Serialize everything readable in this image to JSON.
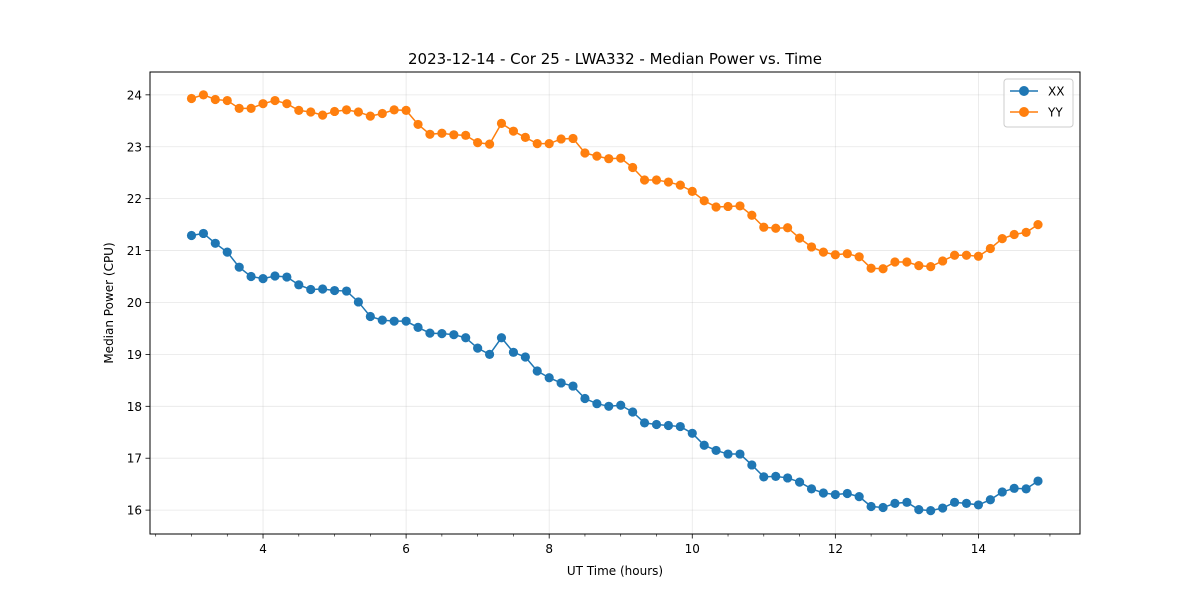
{
  "chart_data": {
    "type": "line",
    "title": "2023-12-14 - Cor 25 - LWA332 - Median Power vs. Time",
    "xlabel": "UT Time (hours)",
    "ylabel": "Median Power (CPU)",
    "xlim": [
      2.42,
      15.42
    ],
    "ylim": [
      15.54,
      24.44
    ],
    "xticks": [
      4,
      6,
      8,
      10,
      12,
      14
    ],
    "xtick_labels": [
      "4",
      "6",
      "8",
      "10",
      "12",
      "14"
    ],
    "yticks": [
      16,
      17,
      18,
      19,
      20,
      21,
      22,
      23,
      24
    ],
    "ytick_labels": [
      "16",
      "17",
      "18",
      "19",
      "20",
      "21",
      "22",
      "23",
      "24"
    ],
    "grid": true,
    "legend_position": "top-right",
    "x": [
      3.0,
      3.167,
      3.333,
      3.5,
      3.667,
      3.833,
      4.0,
      4.167,
      4.333,
      4.5,
      4.667,
      4.833,
      5.0,
      5.167,
      5.333,
      5.5,
      5.667,
      5.833,
      6.0,
      6.167,
      6.333,
      6.5,
      6.667,
      6.833,
      7.0,
      7.167,
      7.333,
      7.5,
      7.667,
      7.833,
      8.0,
      8.167,
      8.333,
      8.5,
      8.667,
      8.833,
      9.0,
      9.167,
      9.333,
      9.5,
      9.667,
      9.833,
      10.0,
      10.167,
      10.333,
      10.5,
      10.667,
      10.833,
      11.0,
      11.167,
      11.333,
      11.5,
      11.667,
      11.833,
      12.0,
      12.167,
      12.333,
      12.5,
      12.667,
      12.833,
      13.0,
      13.167,
      13.333,
      13.5,
      13.667,
      13.833,
      14.0,
      14.167,
      14.333,
      14.5,
      14.667,
      14.833
    ],
    "series": [
      {
        "name": "XX",
        "color": "#1f77b4",
        "values": [
          21.29,
          21.33,
          21.14,
          20.97,
          20.68,
          20.5,
          20.46,
          20.51,
          20.49,
          20.34,
          20.25,
          20.26,
          20.23,
          20.22,
          20.01,
          19.73,
          19.66,
          19.64,
          19.64,
          19.52,
          19.41,
          19.4,
          19.38,
          19.32,
          19.12,
          19.0,
          19.32,
          19.04,
          18.95,
          18.68,
          18.55,
          18.45,
          18.39,
          18.15,
          18.05,
          18.0,
          18.02,
          17.89,
          17.68,
          17.65,
          17.63,
          17.61,
          17.48,
          17.25,
          17.15,
          17.08,
          17.08,
          16.87,
          16.64,
          16.65,
          16.62,
          16.54,
          16.41,
          16.33,
          16.3,
          16.32,
          16.26,
          16.07,
          16.05,
          16.13,
          16.15,
          16.01,
          15.99,
          16.04,
          16.15,
          16.13,
          16.1,
          16.2,
          16.35,
          16.42,
          16.41,
          16.56
        ]
      },
      {
        "name": "YY",
        "color": "#ff7f0e",
        "values": [
          23.93,
          24.0,
          23.91,
          23.89,
          23.74,
          23.74,
          23.83,
          23.89,
          23.83,
          23.7,
          23.67,
          23.61,
          23.68,
          23.71,
          23.67,
          23.59,
          23.64,
          23.71,
          23.7,
          23.43,
          23.24,
          23.26,
          23.23,
          23.22,
          23.08,
          23.05,
          23.45,
          23.3,
          23.18,
          23.06,
          23.06,
          23.15,
          23.16,
          22.88,
          22.82,
          22.77,
          22.78,
          22.6,
          22.36,
          22.36,
          22.32,
          22.26,
          22.14,
          21.96,
          21.84,
          21.85,
          21.86,
          21.68,
          21.45,
          21.43,
          21.44,
          21.24,
          21.07,
          20.97,
          20.92,
          20.94,
          20.88,
          20.66,
          20.65,
          20.78,
          20.78,
          20.71,
          20.69,
          20.8,
          20.91,
          20.91,
          20.89,
          21.04,
          21.23,
          21.31,
          21.35,
          21.5
        ]
      }
    ]
  }
}
